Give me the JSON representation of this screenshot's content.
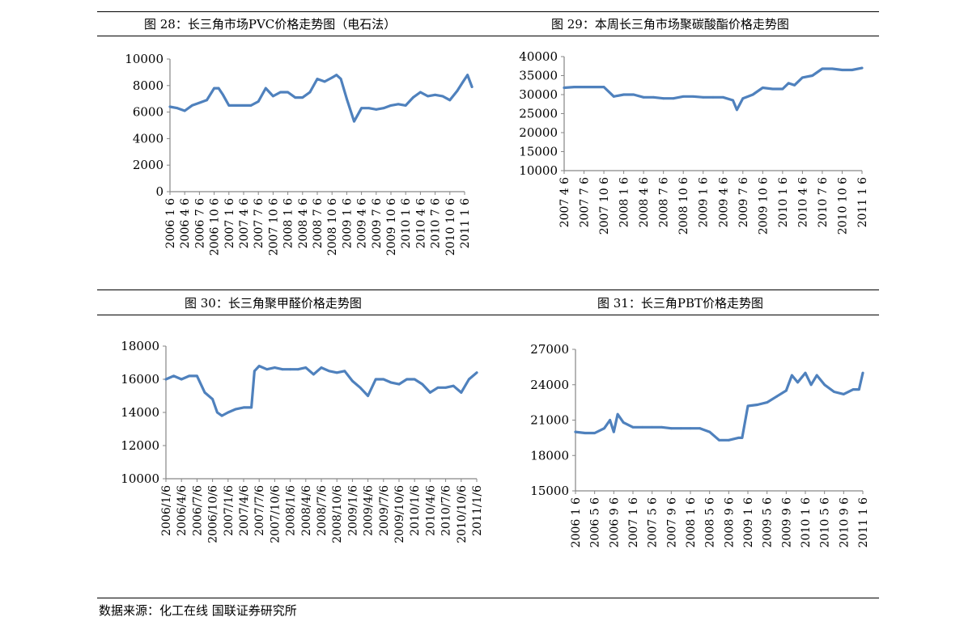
{
  "captions": {
    "fig28": "图 28：长三角市场PVC价格走势图（电石法）",
    "fig29": "图 29：本周长三角市场聚碳酸酯价格走势图",
    "fig30": "图 30：长三角聚甲醛价格走势图",
    "fig31": "图 31：长三角PBT价格走势图"
  },
  "source": "数据来源：化工在线  国联证券研究所",
  "chart_data": [
    {
      "id": "fig28",
      "type": "line",
      "title": "图 28：长三角市场PVC价格走势图（电石法）",
      "series_color": "#4F81BD",
      "ylim": [
        0,
        10000
      ],
      "yticks": [
        "0",
        "2000",
        "4000",
        "6000",
        "8000",
        "10000"
      ],
      "ytick_values": [
        0,
        2000,
        4000,
        6000,
        8000,
        10000
      ],
      "xtick_labels": [
        "2006 1 6",
        "2006 4 6",
        "2006 7 6",
        "2006 10 6",
        "2007 1 6",
        "2007 4 6",
        "2007 7 6",
        "2007 10 6",
        "2008 1 6",
        "2008 4 6",
        "2008 7 6",
        "2008 10 6",
        "2009 1 6",
        "2009 4 6",
        "2009 7 6",
        "2009 10 6",
        "2010 1 6",
        "2010 4 6",
        "2010 7 6",
        "2010 10 6",
        "2011 1 6"
      ],
      "x": [
        0,
        0.5,
        1,
        1.5,
        2,
        2.5,
        3,
        3.3,
        3.6,
        4,
        4.5,
        5,
        5.5,
        6,
        6.5,
        7,
        7.5,
        8,
        8.5,
        9,
        9.5,
        10,
        10.5,
        11,
        11.3,
        11.6,
        12,
        12.5,
        13,
        13.5,
        14,
        14.5,
        15,
        15.5,
        16,
        16.5,
        17,
        17.5,
        18,
        18.5,
        19,
        19.5,
        19.9,
        20.2,
        20.5
      ],
      "values": [
        6400,
        6300,
        6100,
        6500,
        6700,
        6900,
        7800,
        7800,
        7300,
        6500,
        6500,
        6500,
        6500,
        6800,
        7800,
        7200,
        7500,
        7500,
        7100,
        7100,
        7500,
        8500,
        8300,
        8600,
        8800,
        8500,
        7000,
        5300,
        6300,
        6300,
        6200,
        6300,
        6500,
        6600,
        6500,
        7100,
        7500,
        7200,
        7300,
        7200,
        6900,
        7600,
        8300,
        8800,
        7900
      ]
    },
    {
      "id": "fig29",
      "type": "line",
      "title": "图 29：本周长三角市场聚碳酸酯价格走势图",
      "series_color": "#4F81BD",
      "ylim": [
        10000,
        40000
      ],
      "yticks": [
        "10000",
        "15000",
        "20000",
        "25000",
        "30000",
        "35000",
        "40000"
      ],
      "ytick_values": [
        10000,
        15000,
        20000,
        25000,
        30000,
        35000,
        40000
      ],
      "xtick_labels": [
        "2007 4 6",
        "2007 7 6",
        "2007 10 6",
        "2008 1 6",
        "2008 4 6",
        "2008 7 6",
        "2008 10 6",
        "2009 1 6",
        "2009 4 6",
        "2009 7 6",
        "2009 10 6",
        "2010 1 6",
        "2010 4 6",
        "2010 7 6",
        "2010 10 6",
        "2011 1 6"
      ],
      "x": [
        0,
        0.5,
        1,
        1.5,
        2,
        2.5,
        3,
        3.5,
        4,
        4.5,
        5,
        5.5,
        6,
        6.5,
        7,
        7.5,
        8,
        8.5,
        8.7,
        9,
        9.5,
        10,
        10.5,
        11,
        11.3,
        11.6,
        12,
        12.5,
        13,
        13.5,
        14,
        14.5,
        15
      ],
      "values": [
        31800,
        32000,
        32000,
        32000,
        32000,
        29500,
        30000,
        30000,
        29300,
        29300,
        29000,
        29000,
        29500,
        29500,
        29300,
        29300,
        29300,
        28500,
        26000,
        29000,
        30000,
        31800,
        31500,
        31500,
        33000,
        32500,
        34500,
        35000,
        36800,
        36800,
        36500,
        36500,
        37000
      ]
    },
    {
      "id": "fig30",
      "type": "line",
      "title": "图 30：长三角聚甲醛价格走势图",
      "series_color": "#4F81BD",
      "ylim": [
        10000,
        18000
      ],
      "yticks": [
        "10000",
        "12000",
        "14000",
        "16000",
        "18000"
      ],
      "ytick_values": [
        10000,
        12000,
        14000,
        16000,
        18000
      ],
      "xtick_labels": [
        "2006/1/6",
        "2006/4/6",
        "2006/7/6",
        "2006/10/6",
        "2007/1/6",
        "2007/4/6",
        "2007/7/6",
        "2007/10/6",
        "2008/1/6",
        "2008/4/6",
        "2008/7/6",
        "2008/10/6",
        "2009/1/6",
        "2009/4/6",
        "2009/7/6",
        "2009/10/6",
        "2010/1/6",
        "2010/4/6",
        "2010/7/6",
        "2010/10/6",
        "2011/1/6"
      ],
      "x": [
        0,
        0.5,
        1,
        1.5,
        2,
        2.5,
        3,
        3.3,
        3.6,
        4,
        4.5,
        5,
        5.5,
        5.7,
        6,
        6.5,
        7,
        7.5,
        8,
        8.5,
        9,
        9.5,
        10,
        10.5,
        11,
        11.5,
        12,
        12.5,
        13,
        13.5,
        14,
        14.5,
        15,
        15.5,
        16,
        16.5,
        17,
        17.5,
        18,
        18.5,
        19,
        19.5,
        20
      ],
      "values": [
        16000,
        16200,
        16000,
        16200,
        16200,
        15200,
        14800,
        14000,
        13800,
        14000,
        14200,
        14300,
        14300,
        16500,
        16800,
        16600,
        16700,
        16600,
        16600,
        16600,
        16700,
        16300,
        16700,
        16500,
        16400,
        16500,
        15900,
        15500,
        15000,
        16000,
        16000,
        15800,
        15700,
        16000,
        16000,
        15700,
        15200,
        15500,
        15500,
        15600,
        15200,
        16000,
        16400
      ]
    },
    {
      "id": "fig31",
      "type": "line",
      "title": "图 31：长三角PBT价格走势图",
      "series_color": "#4F81BD",
      "ylim": [
        15000,
        27000
      ],
      "yticks": [
        "15000",
        "18000",
        "21000",
        "24000",
        "27000"
      ],
      "ytick_values": [
        15000,
        18000,
        21000,
        24000,
        27000
      ],
      "xtick_labels": [
        "2006 1 6",
        "2006 5 6",
        "2006 9 6",
        "2007 1 6",
        "2007 5 6",
        "2007 9 6",
        "2008 1 6",
        "2008 5 6",
        "2008 9 6",
        "2009 1 6",
        "2009 5 6",
        "2009 9 6",
        "2010 1 6",
        "2010 5 6",
        "2010 9 6",
        "2011 1 6"
      ],
      "x": [
        0,
        0.5,
        1,
        1.5,
        1.8,
        2.0,
        2.2,
        2.5,
        3,
        3.5,
        4,
        4.5,
        5,
        5.5,
        6,
        6.5,
        7,
        7.5,
        8,
        8.5,
        8.7,
        9,
        9.5,
        10,
        10.5,
        11,
        11.3,
        11.6,
        12,
        12.3,
        12.6,
        13,
        13.5,
        14,
        14.5,
        14.8,
        15
      ],
      "values": [
        20000,
        19900,
        19900,
        20300,
        21000,
        20000,
        21500,
        20800,
        20400,
        20400,
        20400,
        20400,
        20300,
        20300,
        20300,
        20300,
        20000,
        19300,
        19300,
        19500,
        19500,
        22200,
        22300,
        22500,
        23000,
        23500,
        24800,
        24200,
        25000,
        24000,
        24800,
        24000,
        23400,
        23200,
        23600,
        23600,
        25000
      ]
    }
  ]
}
